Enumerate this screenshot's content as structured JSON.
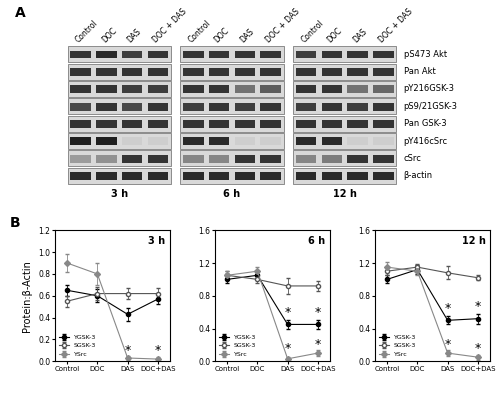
{
  "panel_labels": [
    "A",
    "B"
  ],
  "blots": {
    "lanes": [
      "Control",
      "DOC",
      "DAS",
      "DOC + DAS"
    ],
    "proteins": [
      "pS473 Akt",
      "Pan Akt",
      "pY216GSK-3",
      "pS9/21GSK-3",
      "Pan GSK-3",
      "pY416cSrc",
      "cSrc",
      "β-actin"
    ],
    "times": [
      "3 h",
      "6 h",
      "12 h"
    ],
    "band_intensity": [
      [
        [
          0.8,
          0.85,
          0.75,
          0.8
        ],
        [
          0.8,
          0.8,
          0.8,
          0.8
        ],
        [
          0.8,
          0.8,
          0.75,
          0.75
        ],
        [
          0.7,
          0.8,
          0.7,
          0.8
        ],
        [
          0.8,
          0.8,
          0.8,
          0.8
        ],
        [
          0.9,
          0.9,
          0.05,
          0.05
        ],
        [
          0.3,
          0.35,
          0.8,
          0.8
        ],
        [
          0.85,
          0.85,
          0.85,
          0.85
        ]
      ],
      [
        [
          0.8,
          0.8,
          0.8,
          0.8
        ],
        [
          0.8,
          0.8,
          0.8,
          0.8
        ],
        [
          0.8,
          0.8,
          0.5,
          0.6
        ],
        [
          0.75,
          0.8,
          0.75,
          0.8
        ],
        [
          0.8,
          0.8,
          0.8,
          0.8
        ],
        [
          0.85,
          0.85,
          0.05,
          0.05
        ],
        [
          0.4,
          0.4,
          0.8,
          0.8
        ],
        [
          0.85,
          0.85,
          0.85,
          0.85
        ]
      ],
      [
        [
          0.75,
          0.8,
          0.8,
          0.8
        ],
        [
          0.8,
          0.8,
          0.8,
          0.8
        ],
        [
          0.8,
          0.8,
          0.5,
          0.55
        ],
        [
          0.75,
          0.8,
          0.75,
          0.8
        ],
        [
          0.8,
          0.8,
          0.8,
          0.8
        ],
        [
          0.85,
          0.85,
          0.05,
          0.05
        ],
        [
          0.4,
          0.45,
          0.8,
          0.8
        ],
        [
          0.85,
          0.85,
          0.85,
          0.85
        ]
      ]
    ]
  },
  "chart_data": [
    {
      "type": "line",
      "title": "3 h",
      "y_label": "Protein:β-Actin",
      "categories": [
        "Control",
        "DOC",
        "DAS",
        "DOC+DAS"
      ],
      "ylim": [
        0,
        1.2
      ],
      "yticks": [
        {
          "value": 0,
          "label": "0.0"
        },
        {
          "value": 0.2,
          "label": "0.2"
        },
        {
          "value": 0.4,
          "label": "0.4"
        },
        {
          "value": 0.6,
          "label": "0.6"
        },
        {
          "value": 0.8,
          "label": "0.8"
        },
        {
          "value": 1.0,
          "label": "1.0"
        },
        {
          "value": 1.2,
          "label": "1.2"
        }
      ],
      "legend": "lower left",
      "series": [
        {
          "name": "YGSK-3",
          "color": "#000000",
          "marker": "circle",
          "values": [
            0.65,
            0.6,
            0.43,
            0.57
          ],
          "errors": [
            0.05,
            0.06,
            0.06,
            0.05
          ]
        },
        {
          "name": "SGSK-3",
          "color": "#555555",
          "marker": "open_circle",
          "values": [
            0.55,
            0.62,
            0.62,
            0.62
          ],
          "errors": [
            0.05,
            0.06,
            0.05,
            0.05
          ]
        },
        {
          "name": "YSrc",
          "color": "#888888",
          "marker": "diamond",
          "values": [
            0.9,
            0.8,
            0.03,
            0.02
          ],
          "errors": [
            0.08,
            0.1,
            0.02,
            0.02
          ]
        }
      ],
      "annotations": [
        {
          "text": "*",
          "x": "DAS",
          "y": 0.1
        },
        {
          "text": "*",
          "x": "DOC+DAS",
          "y": 0.1
        }
      ]
    },
    {
      "type": "line",
      "title": "6 h",
      "categories": [
        "Control",
        "DOC",
        "DAS",
        "DOC+DAS"
      ],
      "ylim": [
        0,
        1.6
      ],
      "yticks": [
        {
          "value": 0,
          "label": "0.0"
        },
        {
          "value": 0.4,
          "label": "0.4"
        },
        {
          "value": 0.8,
          "label": "0.8"
        },
        {
          "value": 1.2,
          "label": "1.2"
        },
        {
          "value": 1.6,
          "label": "1.6"
        }
      ],
      "legend": "lower left",
      "series": [
        {
          "name": "YGSK-3",
          "color": "#000000",
          "marker": "circle",
          "values": [
            1.0,
            1.05,
            0.45,
            0.45
          ],
          "errors": [
            0.05,
            0.05,
            0.06,
            0.06
          ]
        },
        {
          "name": "SGSK-3",
          "color": "#555555",
          "marker": "open_circle",
          "values": [
            1.05,
            1.0,
            0.92,
            0.92
          ],
          "errors": [
            0.05,
            0.05,
            0.1,
            0.06
          ]
        },
        {
          "name": "YSrc",
          "color": "#888888",
          "marker": "diamond",
          "values": [
            1.05,
            1.1,
            0.03,
            0.1
          ],
          "errors": [
            0.05,
            0.05,
            0.02,
            0.04
          ]
        }
      ],
      "annotations": [
        {
          "text": "*",
          "x": "DAS",
          "y": 0.6
        },
        {
          "text": "*",
          "x": "DOC+DAS",
          "y": 0.6
        },
        {
          "text": "*",
          "x": "DAS",
          "y": 0.16
        },
        {
          "text": "*",
          "x": "DOC+DAS",
          "y": 0.2
        }
      ]
    },
    {
      "type": "line",
      "title": "12 h",
      "categories": [
        "Control",
        "DOC",
        "DAS",
        "DOC+DAS"
      ],
      "ylim": [
        0,
        1.6
      ],
      "yticks": [
        {
          "value": 0,
          "label": "0.0"
        },
        {
          "value": 0.4,
          "label": "0.4"
        },
        {
          "value": 0.8,
          "label": "0.8"
        },
        {
          "value": 1.2,
          "label": "1.2"
        },
        {
          "value": 1.6,
          "label": "1.6"
        }
      ],
      "legend": "lower left",
      "series": [
        {
          "name": "YGSK-3",
          "color": "#000000",
          "marker": "circle",
          "values": [
            1.0,
            1.12,
            0.5,
            0.52
          ],
          "errors": [
            0.05,
            0.05,
            0.05,
            0.06
          ]
        },
        {
          "name": "SGSK-3",
          "color": "#555555",
          "marker": "open_circle",
          "values": [
            1.1,
            1.15,
            1.08,
            1.02
          ],
          "errors": [
            0.05,
            0.04,
            0.08,
            0.03
          ]
        },
        {
          "name": "YSrc",
          "color": "#888888",
          "marker": "diamond",
          "values": [
            1.15,
            1.1,
            0.1,
            0.05
          ],
          "errors": [
            0.06,
            0.05,
            0.04,
            0.03
          ]
        }
      ],
      "annotations": [
        {
          "text": "*",
          "x": "DAS",
          "y": 0.65
        },
        {
          "text": "*",
          "x": "DOC+DAS",
          "y": 0.67
        },
        {
          "text": "*",
          "x": "DAS",
          "y": 0.2
        },
        {
          "text": "*",
          "x": "DOC+DAS",
          "y": 0.15
        }
      ]
    }
  ]
}
